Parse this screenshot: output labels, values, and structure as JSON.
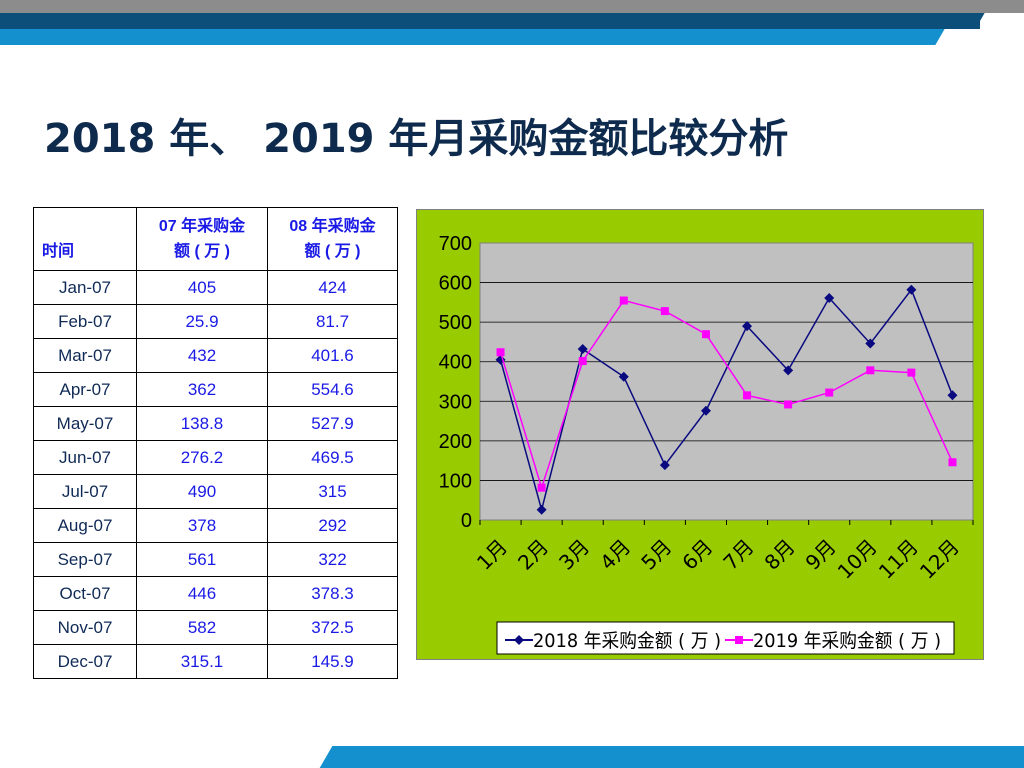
{
  "title": "2018 年、 2019 年月采购金额比较分析",
  "table": {
    "headers": [
      "时间",
      "07 年采购金额 ( 万 )",
      "08 年采购金额 ( 万 )"
    ],
    "header_lines": {
      "col2": [
        "07 年采购金",
        "额 ( 万 )"
      ],
      "col3": [
        "08 年采购金",
        "额 ( 万 )"
      ]
    },
    "rows": [
      {
        "month": "Jan-07",
        "v07": "405",
        "v08": "424"
      },
      {
        "month": "Feb-07",
        "v07": "25.9",
        "v08": "81.7"
      },
      {
        "month": "Mar-07",
        "v07": "432",
        "v08": "401.6"
      },
      {
        "month": "Apr-07",
        "v07": "362",
        "v08": "554.6"
      },
      {
        "month": "May-07",
        "v07": "138.8",
        "v08": "527.9"
      },
      {
        "month": "Jun-07",
        "v07": "276.2",
        "v08": "469.5"
      },
      {
        "month": "Jul-07",
        "v07": "490",
        "v08": "315"
      },
      {
        "month": "Aug-07",
        "v07": "378",
        "v08": "292"
      },
      {
        "month": "Sep-07",
        "v07": "561",
        "v08": "322"
      },
      {
        "month": "Oct-07",
        "v07": "446",
        "v08": "378.3"
      },
      {
        "month": "Nov-07",
        "v07": "582",
        "v08": "372.5"
      },
      {
        "month": "Dec-07",
        "v07": "315.1",
        "v08": "145.9"
      }
    ]
  },
  "chart_data": {
    "type": "line",
    "categories": [
      "1月",
      "2月",
      "3月",
      "4月",
      "5月",
      "6月",
      "7月",
      "8月",
      "9月",
      "10月",
      "11月",
      "12月"
    ],
    "series": [
      {
        "name": "2018 年采购金额 ( 万 )",
        "values": [
          405,
          25.9,
          432,
          362,
          138.8,
          276.2,
          490,
          378,
          561,
          446,
          582,
          315.1
        ],
        "color": "#0a0a80",
        "marker": "diamond"
      },
      {
        "name": "2019 年采购金额 ( 万 )",
        "values": [
          424,
          81.7,
          401.6,
          554.6,
          527.9,
          469.5,
          315,
          292,
          322,
          378.3,
          372.5,
          145.9
        ],
        "color": "#ff00ff",
        "marker": "square"
      }
    ],
    "ylim": [
      0,
      700
    ],
    "yticks": [
      0,
      100,
      200,
      300,
      400,
      500,
      600,
      700
    ],
    "grid": true,
    "legend": "bottom",
    "plot_background": "#c0c0c0",
    "chart_background": "#99cc00"
  }
}
